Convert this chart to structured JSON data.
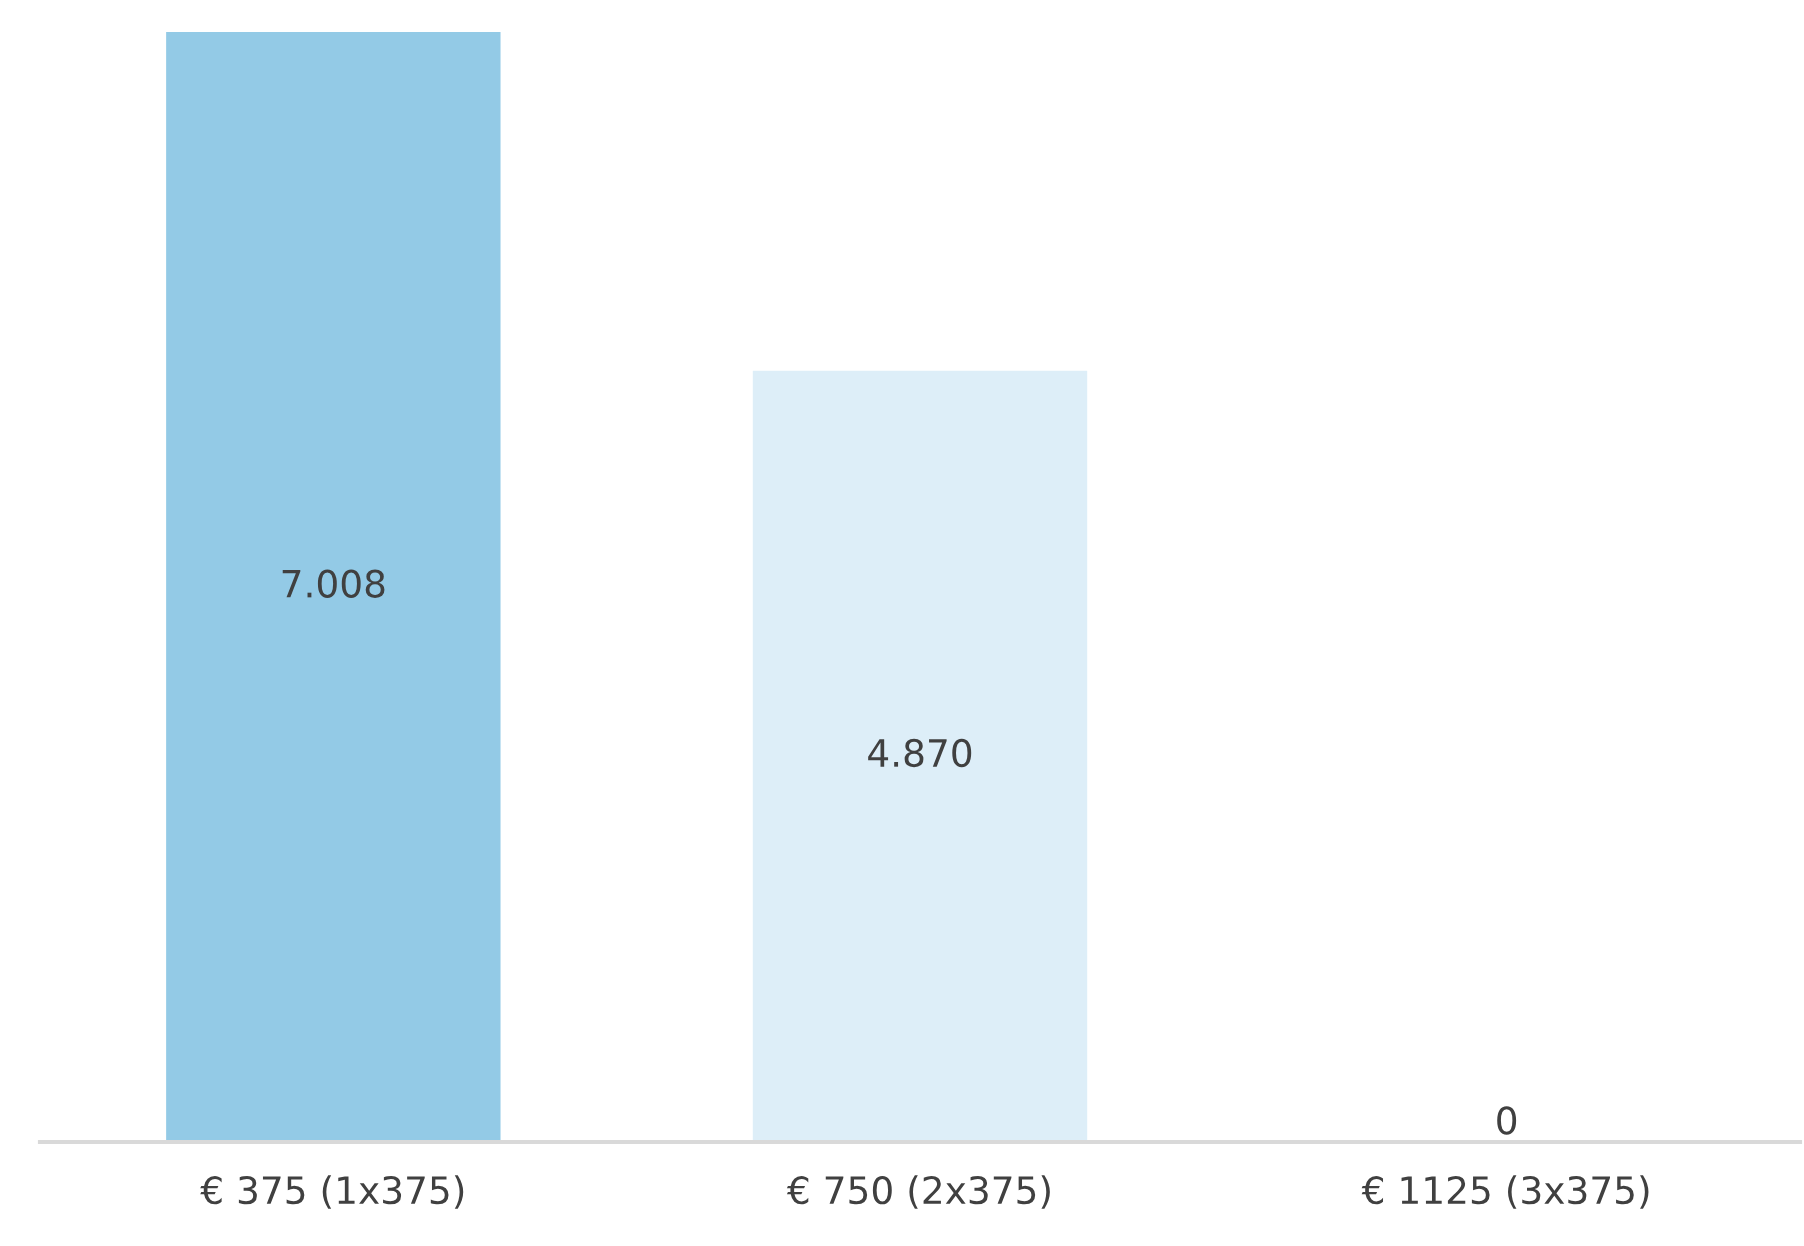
{
  "chart_data": {
    "type": "bar",
    "categories": [
      "€ 375 (1x375)",
      "€ 750 (2x375)",
      "€ 1125 (3x375)"
    ],
    "values": [
      7008,
      4870,
      0
    ],
    "value_labels": [
      "7.008",
      "4.870",
      "0"
    ],
    "colors": [
      "#93cae6",
      "#ddeef8",
      "#c6e3f3"
    ],
    "ylim": [
      0,
      7008
    ],
    "tick_labels": "x",
    "grid": false,
    "legend": false
  }
}
